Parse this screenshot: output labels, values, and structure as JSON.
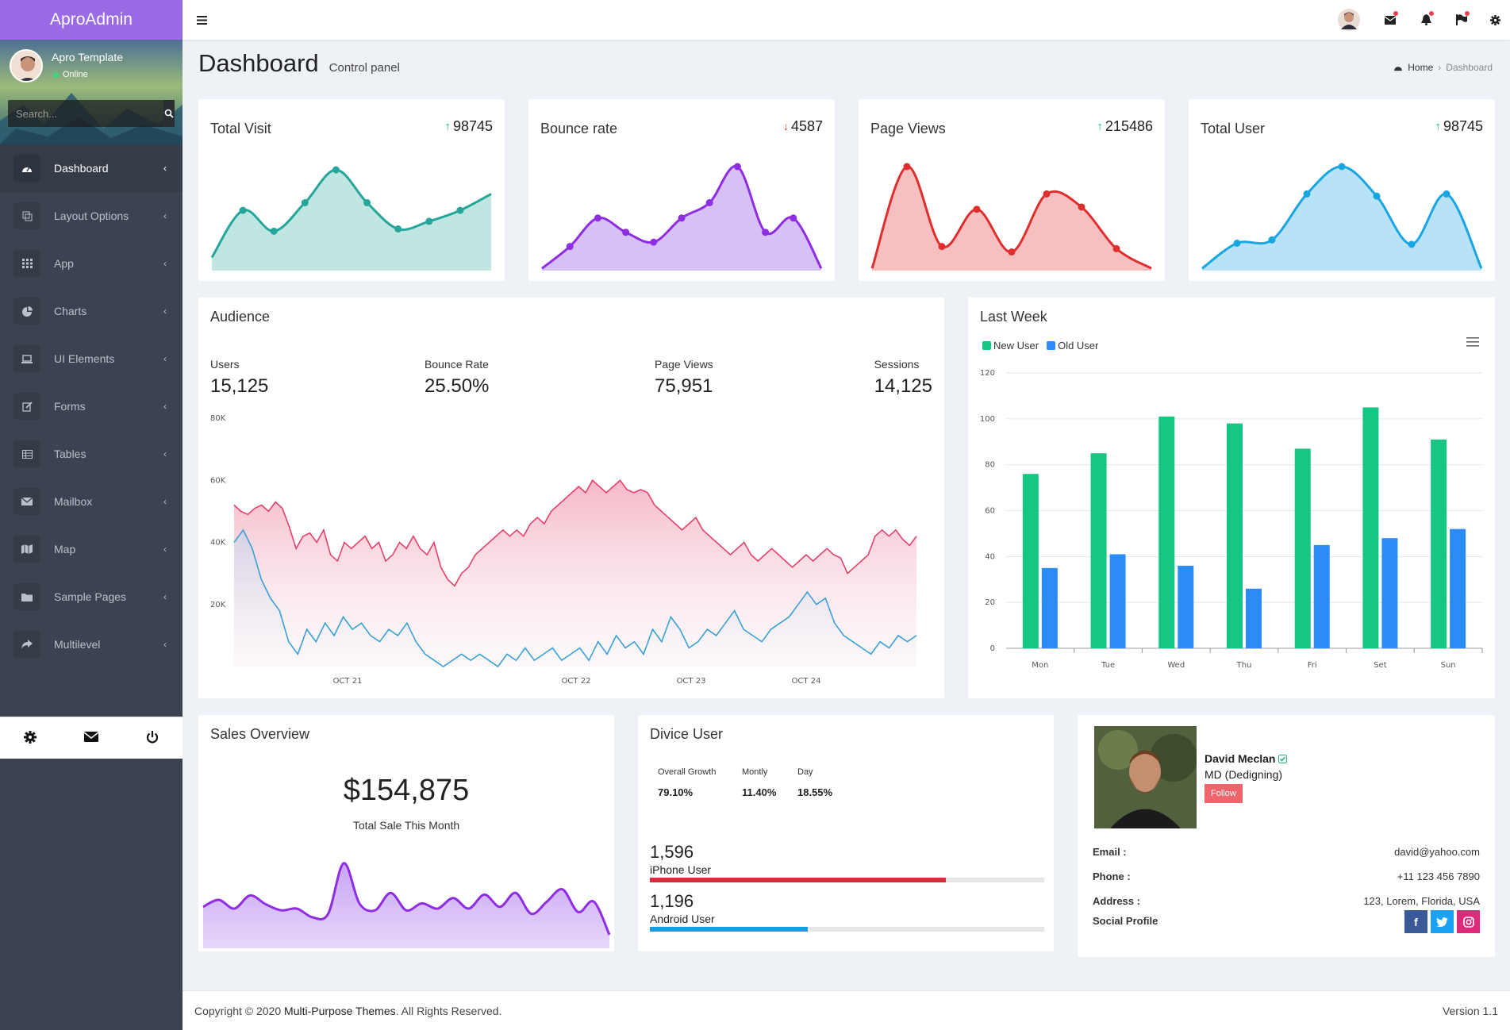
{
  "brand": "AproAdmin",
  "user": {
    "name": "Apro Template",
    "status": "Online"
  },
  "search": {
    "placeholder": "Search..."
  },
  "menu": [
    {
      "label": "Dashboard",
      "icon": "dashboard-icon"
    },
    {
      "label": "Layout Options",
      "icon": "layout-icon"
    },
    {
      "label": "App",
      "icon": "grid-icon"
    },
    {
      "label": "Charts",
      "icon": "pie-icon"
    },
    {
      "label": "UI Elements",
      "icon": "laptop-icon"
    },
    {
      "label": "Forms",
      "icon": "edit-icon"
    },
    {
      "label": "Tables",
      "icon": "table-icon"
    },
    {
      "label": "Mailbox",
      "icon": "envelope-icon"
    },
    {
      "label": "Map",
      "icon": "map-icon"
    },
    {
      "label": "Sample Pages",
      "icon": "folder-icon"
    },
    {
      "label": "Multilevel",
      "icon": "share-icon"
    }
  ],
  "page": {
    "title": "Dashboard",
    "subtitle": "Control panel"
  },
  "breadcrumb": {
    "home": "Home",
    "current": "Dashboard"
  },
  "stats": [
    {
      "title": "Total Visit",
      "value": "98745",
      "trend": "up",
      "color": "#26a69a",
      "fill": "#bfe6e1",
      "points": [
        12,
        55,
        36,
        62,
        92,
        62,
        38,
        45,
        55,
        70
      ]
    },
    {
      "title": "Bounce rate",
      "value": "4587",
      "trend": "down",
      "color": "#8e2de2",
      "fill": "#d7c0f6",
      "points": [
        2,
        22,
        48,
        35,
        26,
        48,
        62,
        95,
        35,
        48,
        2
      ]
    },
    {
      "title": "Page Views",
      "value": "215486",
      "trend": "up",
      "color": "#e02d2d",
      "fill": "#f6c0c0",
      "points": [
        2,
        95,
        22,
        56,
        17,
        70,
        58,
        20,
        2
      ]
    },
    {
      "title": "Total User",
      "value": "98745",
      "trend": "up",
      "color": "#18a5e0",
      "fill": "#b8e3f7",
      "points": [
        2,
        25,
        28,
        70,
        95,
        68,
        24,
        70,
        2
      ]
    }
  ],
  "audience": {
    "title": "Audience",
    "items": [
      {
        "label": "Users",
        "value": "15,125"
      },
      {
        "label": "Bounce Rate",
        "value": "25.50%"
      },
      {
        "label": "Page Views",
        "value": "75,951"
      },
      {
        "label": "Sessions",
        "value": "14,125"
      }
    ]
  },
  "last_week": {
    "title": "Last Week"
  },
  "sales": {
    "title": "Sales Overview",
    "amount": "$154,875",
    "caption": "Total Sale This Month",
    "points": [
      42,
      50,
      40,
      55,
      45,
      38,
      40,
      30,
      34,
      92,
      46,
      38,
      58,
      38,
      46,
      40,
      52,
      40,
      56,
      42,
      58,
      34,
      48,
      62,
      36,
      48,
      10
    ]
  },
  "device": {
    "title": "Divice User",
    "metrics": [
      {
        "label": "Overall Growth",
        "value": "79.10%"
      },
      {
        "label": "Montly",
        "value": "11.40%"
      },
      {
        "label": "Day",
        "value": "18.55%"
      }
    ],
    "users": [
      {
        "count": "1,596",
        "label": "iPhone User",
        "percent": 75,
        "color": "#e0283c"
      },
      {
        "count": "1,196",
        "label": "Android User",
        "percent": 40,
        "color": "#1e9ae0"
      }
    ]
  },
  "profile": {
    "name": "David Meclan",
    "role": "MD (Dedigning)",
    "follow": "Follow",
    "email_label": "Email :",
    "email": "david@yahoo.com",
    "phone_label": "Phone :",
    "phone": "+11 123 456 7890",
    "address_label": "Address :",
    "address": "123, Lorem, Florida, USA",
    "social_label": "Social Profile",
    "social": [
      "f",
      "t",
      "ig"
    ]
  },
  "footer": {
    "copyright_pre": "Copyright © 2020 ",
    "company": "Multi-Purpose Themes",
    "copyright_post": ". All Rights Reserved.",
    "version": "Version 1.1"
  },
  "chart_data": [
    {
      "type": "area",
      "title": "Audience",
      "x_ticks": [
        "OCT 21",
        "OCT 22",
        "OCT 23",
        "OCT 24"
      ],
      "ylim": [
        0,
        80000
      ],
      "y_ticks": [
        "20K",
        "40K",
        "60K",
        "80K"
      ],
      "series": [
        {
          "name": "Page Views",
          "color": "#e5416a",
          "values": [
            52,
            50,
            49,
            51,
            52,
            50,
            53,
            51,
            45,
            38,
            42,
            43,
            40,
            44,
            36,
            34,
            40,
            38,
            40,
            42,
            38,
            40,
            34,
            36,
            40,
            38,
            42,
            38,
            36,
            40,
            32,
            28,
            26,
            30,
            32,
            36,
            38,
            40,
            42,
            44,
            42,
            44,
            42,
            46,
            48,
            46,
            50,
            52,
            54,
            56,
            58,
            56,
            60,
            58,
            56,
            58,
            60,
            57,
            56,
            57,
            56,
            52,
            50,
            48,
            46,
            44,
            46,
            48,
            44,
            42,
            40,
            38,
            36,
            38,
            40,
            36,
            34,
            36,
            38,
            36,
            34,
            32,
            34,
            36,
            34,
            36,
            38,
            36,
            35,
            30,
            32,
            34,
            36,
            42,
            44,
            42,
            44,
            41,
            39,
            42
          ]
        },
        {
          "name": "Sessions",
          "color": "#3aa0d5",
          "values": [
            40,
            44,
            38,
            28,
            22,
            18,
            8,
            4,
            12,
            8,
            14,
            10,
            16,
            12,
            14,
            10,
            8,
            12,
            10,
            14,
            8,
            4,
            2,
            0,
            2,
            4,
            2,
            4,
            2,
            0,
            4,
            2,
            6,
            2,
            4,
            6,
            2,
            4,
            6,
            2,
            8,
            4,
            10,
            6,
            8,
            4,
            12,
            8,
            16,
            12,
            6,
            8,
            12,
            10,
            14,
            18,
            12,
            10,
            8,
            12,
            14,
            16,
            20,
            24,
            20,
            22,
            14,
            10,
            8,
            6,
            4,
            8,
            6,
            10,
            8,
            10
          ]
        }
      ]
    },
    {
      "type": "bar",
      "title": "Last Week",
      "categories": [
        "Mon",
        "Tue",
        "Wed",
        "Thu",
        "Fri",
        "Set",
        "Sun"
      ],
      "ylim": [
        0,
        120
      ],
      "y_ticks": [
        0,
        20,
        40,
        60,
        80,
        100,
        120
      ],
      "series": [
        {
          "name": "New User",
          "color": "#16c784",
          "values": [
            76,
            85,
            101,
            98,
            87,
            105,
            91
          ]
        },
        {
          "name": "Old User",
          "color": "#2b8bf7",
          "values": [
            35,
            41,
            36,
            26,
            45,
            48,
            52
          ]
        }
      ]
    }
  ]
}
